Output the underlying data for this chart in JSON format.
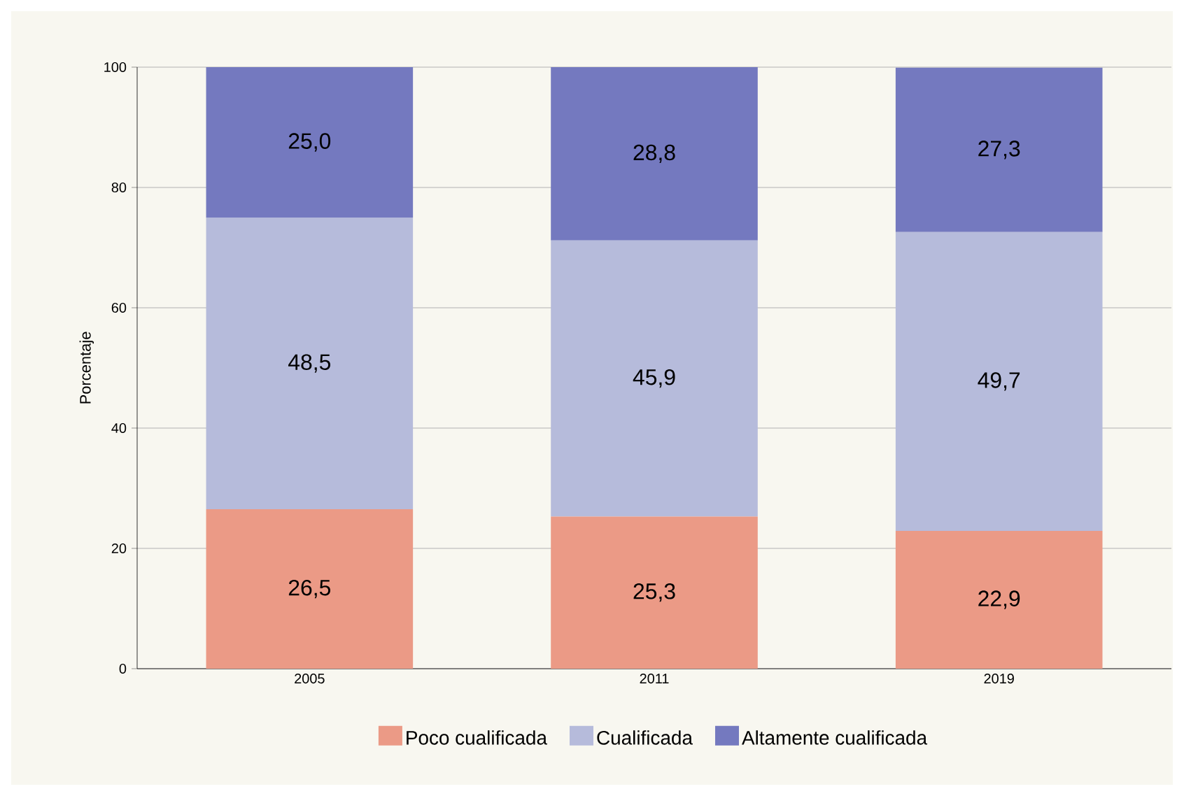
{
  "chart_data": {
    "type": "bar",
    "stacked": true,
    "ylabel": "Porcentaje",
    "categories": [
      "2005",
      "2011",
      "2019"
    ],
    "series": [
      {
        "name": "Poco cualificada",
        "color": "#eb9a86",
        "values": [
          26.5,
          25.3,
          22.9
        ],
        "value_labels": [
          "26,5",
          "25,3",
          "22,9"
        ]
      },
      {
        "name": "Cualificada",
        "color": "#b6bbdb",
        "values": [
          48.5,
          45.9,
          49.7
        ],
        "value_labels": [
          "48,5",
          "45,9",
          "49,7"
        ]
      },
      {
        "name": "Altamente cualificada",
        "color": "#7479bf",
        "values": [
          25.0,
          28.8,
          27.3
        ],
        "value_labels": [
          "25,0",
          "28,8",
          "27,3"
        ]
      }
    ],
    "ylim": [
      0,
      100
    ],
    "yticks": [
      0,
      20,
      40,
      60,
      80,
      100
    ],
    "grid": "y",
    "legend": "bottom"
  }
}
